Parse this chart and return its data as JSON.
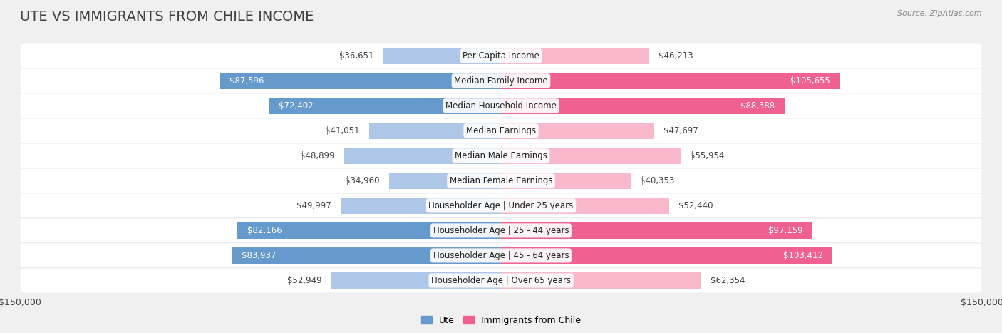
{
  "title": "UTE VS IMMIGRANTS FROM CHILE INCOME",
  "source": "Source: ZipAtlas.com",
  "categories": [
    "Per Capita Income",
    "Median Family Income",
    "Median Household Income",
    "Median Earnings",
    "Median Male Earnings",
    "Median Female Earnings",
    "Householder Age | Under 25 years",
    "Householder Age | 25 - 44 years",
    "Householder Age | 45 - 64 years",
    "Householder Age | Over 65 years"
  ],
  "ute_values": [
    36651,
    87596,
    72402,
    41051,
    48899,
    34960,
    49997,
    82166,
    83937,
    52949
  ],
  "chile_values": [
    46213,
    105655,
    88388,
    47697,
    55954,
    40353,
    52440,
    97159,
    103412,
    62354
  ],
  "ute_labels": [
    "$36,651",
    "$87,596",
    "$72,402",
    "$41,051",
    "$48,899",
    "$34,960",
    "$49,997",
    "$82,166",
    "$83,937",
    "$52,949"
  ],
  "chile_labels": [
    "$46,213",
    "$105,655",
    "$88,388",
    "$47,697",
    "$55,954",
    "$40,353",
    "$52,440",
    "$97,159",
    "$103,412",
    "$62,354"
  ],
  "ute_color_light": "#aec6e8",
  "ute_color_dark": "#6699cc",
  "chile_color_light": "#f9b8cc",
  "chile_color_dark": "#f06090",
  "max_value": 150000,
  "background_color": "#f0f0f0",
  "row_bg_even": "#fafafa",
  "row_bg_odd": "#f0f0f0",
  "legend_ute": "Ute",
  "legend_chile": "Immigrants from Chile",
  "title_fontsize": 14,
  "label_fontsize": 8.5,
  "inside_label_threshold_ute": 55000,
  "inside_label_threshold_chile": 80000
}
